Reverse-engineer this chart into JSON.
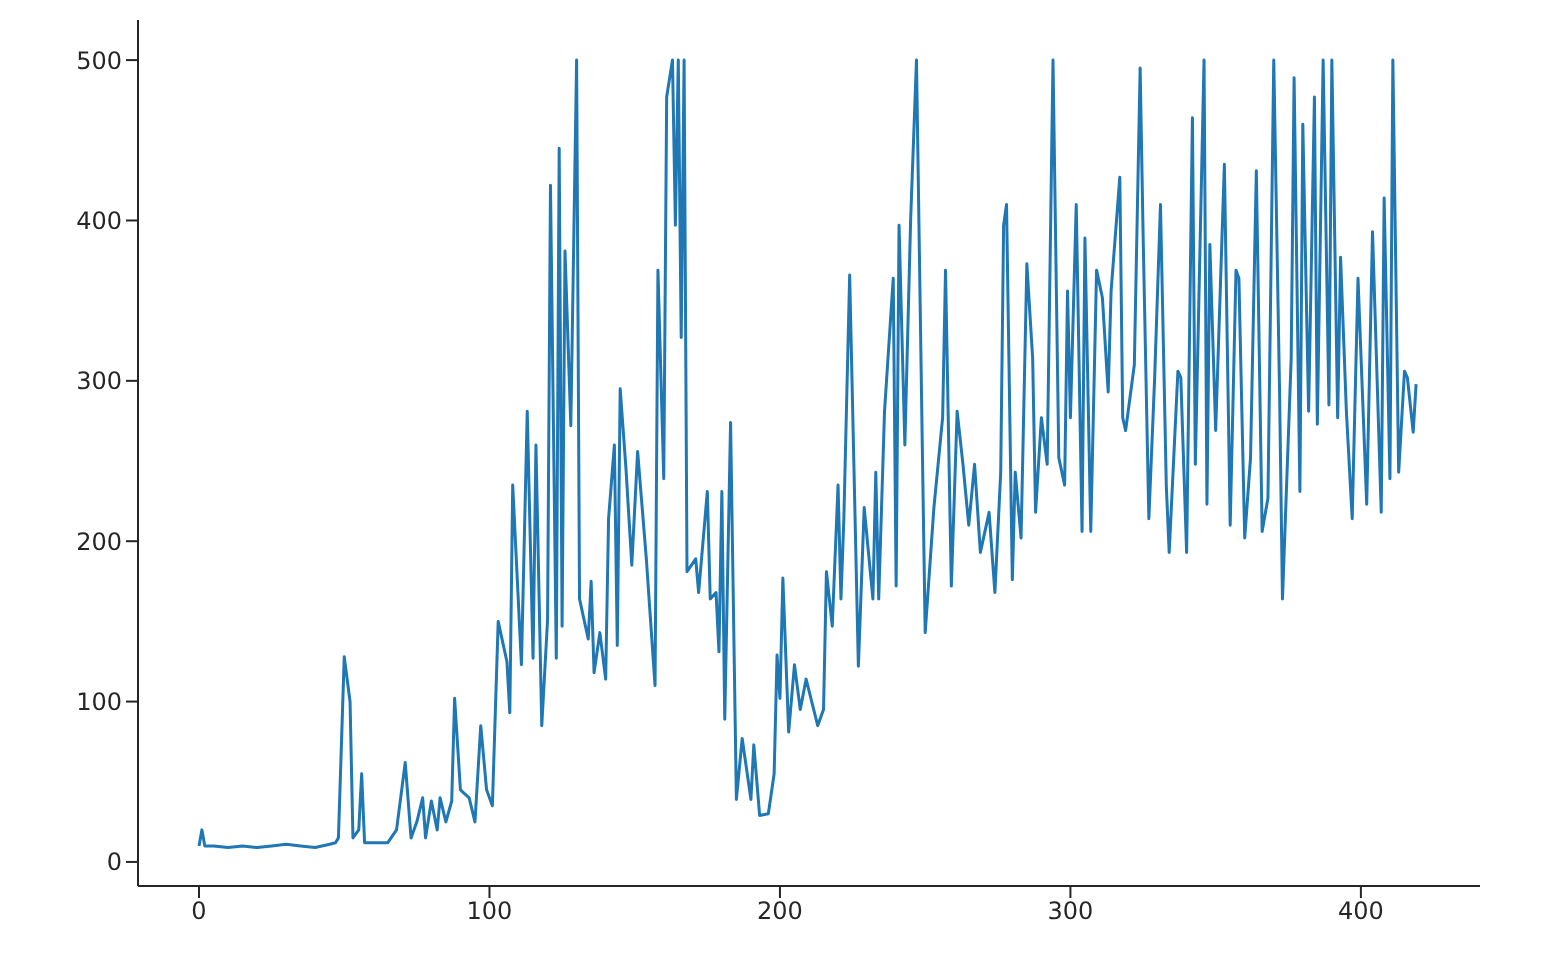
{
  "chart_data": {
    "type": "line",
    "x": [
      0,
      1,
      2,
      5,
      10,
      15,
      20,
      25,
      30,
      35,
      40,
      45,
      47,
      48,
      50,
      52,
      53,
      55,
      56,
      57,
      60,
      65,
      68,
      71,
      73,
      75,
      77,
      78,
      80,
      82,
      83,
      85,
      87,
      88,
      90,
      93,
      95,
      97,
      99,
      101,
      103,
      106,
      107,
      108,
      111,
      113,
      115,
      116,
      118,
      120,
      121,
      123,
      124,
      125,
      126,
      128,
      130,
      131,
      134,
      135,
      136,
      138,
      140,
      141,
      143,
      144,
      145,
      147,
      149,
      151,
      154,
      157,
      158,
      160,
      161,
      163,
      164,
      165,
      166,
      167,
      168,
      171,
      172,
      175,
      176,
      178,
      179,
      180,
      181,
      183,
      185,
      187,
      190,
      191,
      193,
      196,
      198,
      199,
      200,
      201,
      203,
      205,
      207,
      209,
      213,
      215,
      216,
      218,
      220,
      221,
      222,
      224,
      227,
      229,
      232,
      233,
      234,
      236,
      239,
      240,
      241,
      243,
      245,
      247,
      249,
      250,
      253,
      256,
      257,
      259,
      261,
      263,
      265,
      267,
      269,
      272,
      274,
      276,
      277,
      278,
      280,
      281,
      283,
      285,
      287,
      288,
      290,
      292,
      294,
      296,
      298,
      299,
      300,
      302,
      304,
      305,
      307,
      309,
      311,
      313,
      314,
      317,
      318,
      319,
      322,
      324,
      325,
      327,
      329,
      331,
      333,
      334,
      337,
      338,
      340,
      342,
      343,
      346,
      347,
      348,
      350,
      353,
      355,
      357,
      358,
      360,
      362,
      364,
      366,
      368,
      370,
      372,
      373,
      376,
      377,
      379,
      380,
      382,
      384,
      385,
      387,
      389,
      390,
      392,
      393,
      395,
      397,
      399,
      402,
      404,
      407,
      408,
      410,
      411,
      413,
      415,
      416,
      418,
      419
    ],
    "series": [
      {
        "color": "#1f77b4",
        "values": [
          10,
          20,
          10,
          10,
          9,
          10,
          9,
          10,
          11,
          10,
          9,
          11,
          12,
          15,
          128,
          100,
          15,
          20,
          55,
          12,
          12,
          12,
          20,
          62,
          15,
          25,
          40,
          15,
          38,
          20,
          40,
          25,
          38,
          102,
          45,
          40,
          25,
          85,
          45,
          35,
          150,
          125,
          93,
          235,
          123,
          281,
          127,
          260,
          85,
          151,
          422,
          127,
          445,
          147,
          381,
          272,
          500,
          164,
          139,
          175,
          118,
          143,
          114,
          214,
          260,
          135,
          295,
          245,
          185,
          256,
          189,
          110,
          369,
          239,
          477,
          500,
          397,
          500,
          327,
          500,
          181,
          189,
          168,
          231,
          164,
          168,
          131,
          231,
          89,
          274,
          39,
          77,
          39,
          73,
          29,
          30,
          55,
          129,
          102,
          177,
          81,
          123,
          95,
          114,
          85,
          95,
          181,
          147,
          235,
          164,
          214,
          366,
          122,
          221,
          164,
          243,
          164,
          281,
          364,
          172,
          397,
          260,
          401,
          500,
          260,
          143,
          221,
          277,
          369,
          172,
          281,
          248,
          210,
          248,
          193,
          218,
          168,
          243,
          397,
          410,
          176,
          243,
          202,
          373,
          314,
          218,
          277,
          248,
          500,
          252,
          235,
          356,
          277,
          410,
          206,
          389,
          206,
          369,
          352,
          293,
          356,
          427,
          277,
          269,
          310,
          495,
          393,
          214,
          302,
          410,
          235,
          193,
          306,
          302,
          193,
          464,
          248,
          500,
          223,
          385,
          269,
          435,
          210,
          369,
          364,
          202,
          252,
          431,
          206,
          227,
          500,
          293,
          164,
          314,
          489,
          231,
          460,
          281,
          477,
          273,
          500,
          285,
          500,
          277,
          377,
          281,
          214,
          364,
          223,
          393,
          218,
          414,
          239,
          500,
          243,
          306,
          302,
          268,
          298
        ]
      }
    ],
    "xlim": [
      -21,
      441
    ],
    "ylim": [
      -15,
      525
    ],
    "xticks": [
      0,
      100,
      200,
      300,
      400
    ],
    "yticks": [
      0,
      100,
      200,
      300,
      400,
      500
    ],
    "grid": false,
    "legend": false,
    "marker": "none",
    "line_style": "solid"
  }
}
